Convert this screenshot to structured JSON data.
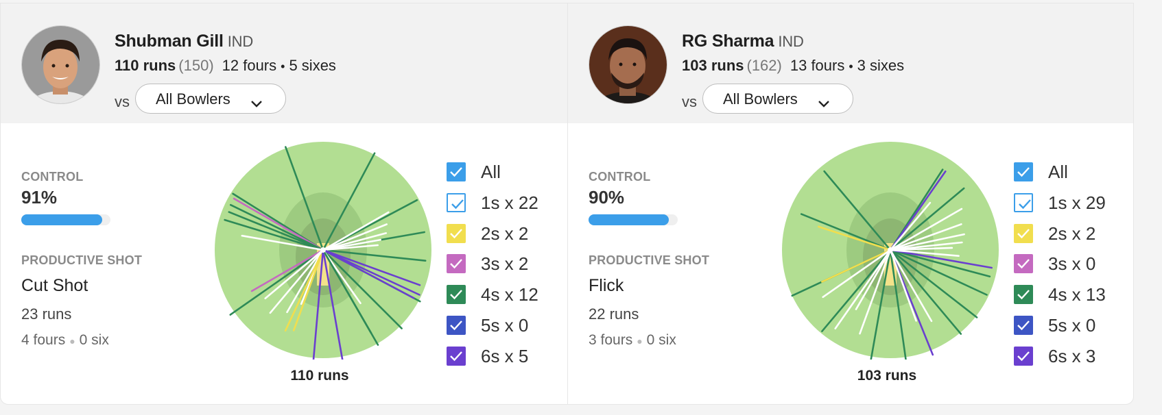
{
  "players": [
    {
      "name": "Shubman Gill",
      "team": "IND",
      "runs": "110 runs",
      "balls": "(150)",
      "fours": "12 fours",
      "sixes": "5 sixes",
      "vs_label": "vs",
      "bowler_filter": "All Bowlers",
      "control_label": "CONTROL",
      "control_value": "91%",
      "control_fraction": 0.91,
      "productive_label": "PRODUCTIVE SHOT",
      "productive_shot": "Cut Shot",
      "productive_runs": "23 runs",
      "productive_fours": "4 fours",
      "productive_sixes": "0 six",
      "wagon_total": "110 runs",
      "legend": [
        {
          "label": "All",
          "color": "#3b9ee9",
          "filled": true
        },
        {
          "label": "1s x 22",
          "color": "#3b9ee9",
          "filled": false
        },
        {
          "label": "2s x 2",
          "color": "#f1de4e",
          "filled": true
        },
        {
          "label": "3s x 2",
          "color": "#c46ac0",
          "filled": true
        },
        {
          "label": "4s x 12",
          "color": "#2e8a57",
          "filled": true
        },
        {
          "label": "5s x 0",
          "color": "#3d55c4",
          "filled": true
        },
        {
          "label": "6s x 5",
          "color": "#6a3fcf",
          "filled": true
        }
      ]
    },
    {
      "name": "RG Sharma",
      "team": "IND",
      "runs": "103 runs",
      "balls": "(162)",
      "fours": "13 fours",
      "sixes": "3 sixes",
      "vs_label": "vs",
      "bowler_filter": "All Bowlers",
      "control_label": "CONTROL",
      "control_value": "90%",
      "control_fraction": 0.9,
      "productive_label": "PRODUCTIVE SHOT",
      "productive_shot": "Flick",
      "productive_runs": "22 runs",
      "productive_fours": "3 fours",
      "productive_sixes": "0 six",
      "wagon_total": "103 runs",
      "legend": [
        {
          "label": "All",
          "color": "#3b9ee9",
          "filled": true
        },
        {
          "label": "1s x 29",
          "color": "#3b9ee9",
          "filled": false
        },
        {
          "label": "2s x 2",
          "color": "#f1de4e",
          "filled": true
        },
        {
          "label": "3s x 0",
          "color": "#c46ac0",
          "filled": true
        },
        {
          "label": "4s x 13",
          "color": "#2e8a57",
          "filled": true
        },
        {
          "label": "5s x 0",
          "color": "#3d55c4",
          "filled": true
        },
        {
          "label": "6s x 3",
          "color": "#6a3fcf",
          "filled": true
        }
      ]
    }
  ],
  "colors": {
    "ground": "#b2de92",
    "infield": "#9dcb80",
    "square": "#8db672",
    "pitch": "#f3e28a",
    "ones": "#ffffff",
    "twos": "#f1de4e",
    "threes": "#c46ac0",
    "fours": "#2e8a57",
    "sixes": "#6a3fcf",
    "control_bar": "#3b9ee9"
  }
}
